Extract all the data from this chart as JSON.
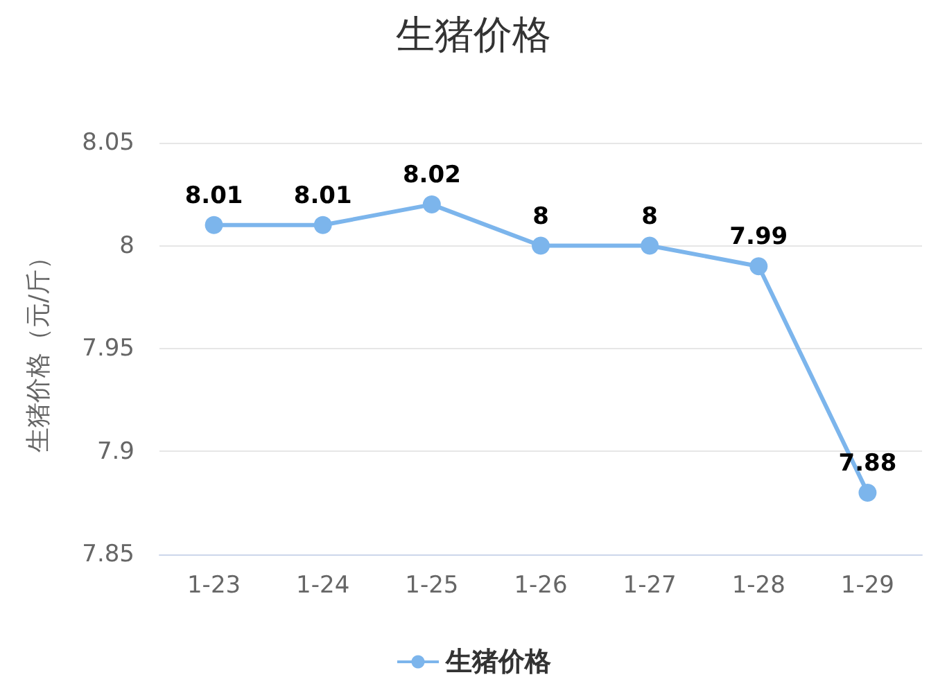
{
  "chart_data": {
    "type": "line",
    "title": "生猪价格",
    "ylabel": "生猪价格（元/斤）",
    "categories": [
      "1-23",
      "1-24",
      "1-25",
      "1-26",
      "1-27",
      "1-28",
      "1-29"
    ],
    "series": [
      {
        "name": "生猪价格",
        "color": "#7cb5ec",
        "values": [
          8.01,
          8.01,
          8.02,
          8,
          8,
          7.99,
          7.88
        ]
      }
    ],
    "ylim": [
      7.85,
      8.05
    ],
    "yticks": [
      7.85,
      7.9,
      7.95,
      8,
      8.05
    ],
    "grid": "y",
    "legend": "bottom",
    "marker": "circle",
    "data_labels": true
  }
}
